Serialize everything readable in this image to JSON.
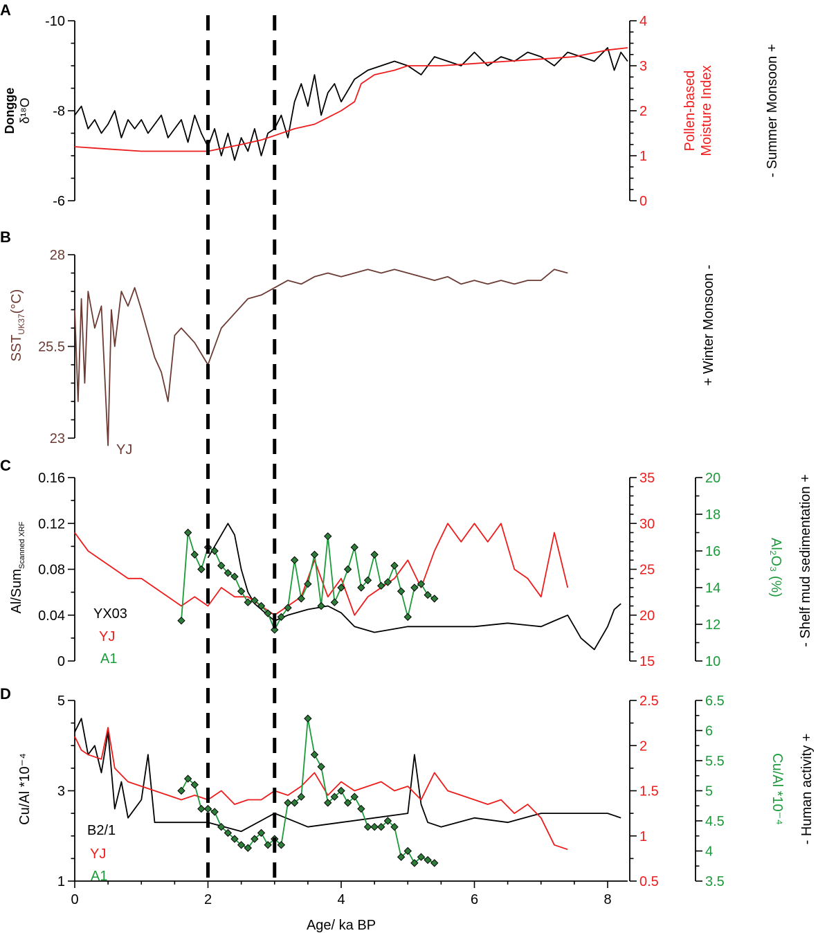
{
  "x_axis": {
    "label": "Age/ ka BP",
    "range": [
      0,
      8.3
    ],
    "ticks": [
      "0",
      "2",
      "4",
      "6",
      "8"
    ]
  },
  "dashed_lines_ka": [
    2,
    3
  ],
  "colors": {
    "black": "#000000",
    "red": "#ee1c1c",
    "green": "#1b9a3a",
    "brown": "#6b3b33",
    "marker_fill": "#2f7d3a"
  },
  "panels": {
    "A": {
      "letter": "A",
      "left_label_line1": "Dongge",
      "left_label_line2": "δ¹⁸O",
      "left_ticks": [
        "-10",
        "-8",
        "-6"
      ],
      "right_label_line1": "Pollen-based",
      "right_label_line2": "Moisture Index",
      "right_ticks": [
        "4",
        "3",
        "2",
        "1",
        "0"
      ],
      "side_label": "-  Summer Monsoon  +"
    },
    "B": {
      "letter": "B",
      "left_label": "SST",
      "left_label_sub": "UK37",
      "left_label_tail": "(°C)",
      "left_ticks": [
        "28",
        "25.5",
        "23"
      ],
      "series_label": "YJ",
      "side_label": "+  Winter Monsoon  -"
    },
    "C": {
      "letter": "C",
      "left_label": "Al/Sum",
      "left_label_sub": "Scanned XRF",
      "left_ticks": [
        "0.16",
        "0.12",
        "0.08",
        "0.04",
        "0"
      ],
      "right1_ticks": [
        "35",
        "30",
        "25",
        "20",
        "15"
      ],
      "right2_ticks": [
        "20",
        "18",
        "16",
        "14",
        "12",
        "10"
      ],
      "right2_label": "Al₂O₃ (%)",
      "legend": [
        "YX03",
        "YJ",
        "A1"
      ],
      "side_label": "-  Shelf mud sedimentation  +"
    },
    "D": {
      "letter": "D",
      "left_label": "Cu/Al *10⁻⁴",
      "left_ticks": [
        "5",
        "3",
        "1"
      ],
      "right1_ticks": [
        "2.5",
        "2",
        "1.5",
        "1",
        "0.5"
      ],
      "right2_ticks": [
        "6.5",
        "6",
        "5.5",
        "5",
        "4.5",
        "4",
        "3.5"
      ],
      "right2_label": "Cu/Al *10⁻⁴",
      "legend": [
        "B2/1",
        "YJ",
        "A1"
      ],
      "side_label": "-  Human activity  +"
    }
  },
  "chart_data": [
    {
      "panel": "A",
      "type": "line",
      "xlabel": "Age/ ka BP",
      "series": [
        {
          "name": "Dongge δ18O",
          "axis": "left",
          "ylim": [
            -10,
            -6
          ],
          "inverted": true,
          "x": [
            0,
            0.1,
            0.2,
            0.3,
            0.4,
            0.5,
            0.6,
            0.7,
            0.8,
            0.9,
            1.0,
            1.1,
            1.2,
            1.3,
            1.4,
            1.5,
            1.6,
            1.7,
            1.8,
            1.9,
            2.0,
            2.1,
            2.2,
            2.3,
            2.4,
            2.5,
            2.6,
            2.7,
            2.8,
            2.9,
            3.0,
            3.1,
            3.2,
            3.3,
            3.4,
            3.5,
            3.6,
            3.7,
            3.8,
            3.9,
            4.0,
            4.2,
            4.4,
            4.6,
            4.8,
            5.0,
            5.2,
            5.4,
            5.6,
            5.8,
            6.0,
            6.2,
            6.4,
            6.6,
            6.8,
            7.0,
            7.2,
            7.4,
            7.6,
            7.8,
            8.0,
            8.1,
            8.2,
            8.3
          ],
          "y": [
            -7.9,
            -8.1,
            -7.6,
            -7.8,
            -7.5,
            -7.7,
            -8.0,
            -7.4,
            -7.8,
            -7.6,
            -7.8,
            -7.5,
            -7.7,
            -7.9,
            -7.4,
            -7.6,
            -7.8,
            -7.3,
            -7.9,
            -7.5,
            -7.2,
            -7.6,
            -7.0,
            -7.5,
            -6.9,
            -7.4,
            -7.1,
            -7.6,
            -7.0,
            -7.5,
            -7.6,
            -7.9,
            -7.4,
            -8.2,
            -8.6,
            -8.1,
            -8.8,
            -7.9,
            -8.4,
            -8.6,
            -8.2,
            -8.7,
            -8.9,
            -9.0,
            -9.1,
            -9.0,
            -8.8,
            -9.2,
            -9.1,
            -9.0,
            -9.3,
            -9.0,
            -9.2,
            -9.1,
            -9.3,
            -9.2,
            -9.0,
            -9.3,
            -9.2,
            -9.1,
            -9.4,
            -8.9,
            -9.3,
            -9.1
          ]
        },
        {
          "name": "Pollen-based Moisture Index",
          "axis": "right",
          "ylim": [
            0,
            4
          ],
          "x": [
            0,
            0.5,
            1.0,
            1.5,
            2.0,
            2.5,
            2.8,
            3.0,
            3.3,
            3.6,
            3.8,
            4.0,
            4.2,
            4.3,
            4.5,
            4.8,
            5.0,
            5.5,
            6.0,
            6.5,
            7.0,
            7.5,
            8.0,
            8.3
          ],
          "y": [
            1.2,
            1.15,
            1.1,
            1.1,
            1.1,
            1.25,
            1.35,
            1.45,
            1.6,
            1.7,
            1.85,
            2.0,
            2.2,
            2.6,
            2.8,
            2.9,
            3.0,
            3.0,
            3.05,
            3.1,
            3.15,
            3.2,
            3.35,
            3.4
          ]
        }
      ]
    },
    {
      "panel": "B",
      "type": "line",
      "xlabel": "Age/ ka BP",
      "ylabel": "SST UK37 (°C)",
      "ylim": [
        23,
        28
      ],
      "series": [
        {
          "name": "YJ",
          "x": [
            0,
            0.05,
            0.1,
            0.15,
            0.2,
            0.3,
            0.4,
            0.5,
            0.55,
            0.6,
            0.7,
            0.8,
            0.9,
            1.0,
            1.2,
            1.3,
            1.4,
            1.5,
            1.6,
            1.8,
            2.0,
            2.2,
            2.4,
            2.6,
            2.8,
            3.0,
            3.2,
            3.4,
            3.6,
            3.8,
            4.0,
            4.2,
            4.4,
            4.6,
            4.8,
            5.0,
            5.2,
            5.4,
            5.6,
            5.8,
            6.0,
            6.2,
            6.4,
            6.6,
            6.8,
            7.0,
            7.2,
            7.4
          ],
          "y": [
            26.5,
            24.0,
            26.8,
            24.5,
            27.0,
            26.0,
            26.6,
            22.8,
            26.5,
            25.5,
            27.0,
            26.6,
            27.1,
            26.5,
            25.2,
            24.8,
            24.0,
            25.8,
            26.0,
            25.6,
            25.0,
            26.0,
            26.4,
            26.8,
            26.9,
            27.1,
            27.3,
            27.2,
            27.4,
            27.5,
            27.4,
            27.5,
            27.6,
            27.5,
            27.6,
            27.5,
            27.4,
            27.3,
            27.4,
            27.2,
            27.3,
            27.2,
            27.3,
            27.2,
            27.3,
            27.3,
            27.6,
            27.5
          ]
        }
      ]
    },
    {
      "panel": "C",
      "type": "line",
      "xlabel": "Age/ ka BP",
      "series": [
        {
          "name": "YX03",
          "axis": "left",
          "ylim": [
            0,
            0.16
          ],
          "x": [
            2.0,
            2.1,
            2.2,
            2.3,
            2.4,
            2.5,
            2.6,
            2.7,
            2.8,
            2.9,
            3.0,
            3.2,
            3.5,
            3.8,
            4.0,
            4.2,
            4.5,
            4.8,
            5.0,
            5.5,
            6.0,
            6.5,
            7.0,
            7.2,
            7.4,
            7.5,
            7.6,
            7.7,
            7.8,
            7.9,
            8.0,
            8.1,
            8.2
          ],
          "y": [
            0.09,
            0.1,
            0.11,
            0.12,
            0.11,
            0.08,
            0.06,
            0.05,
            0.045,
            0.04,
            0.035,
            0.04,
            0.045,
            0.048,
            0.042,
            0.03,
            0.025,
            0.028,
            0.03,
            0.03,
            0.03,
            0.033,
            0.03,
            0.035,
            0.04,
            0.03,
            0.02,
            0.015,
            0.01,
            0.02,
            0.03,
            0.045,
            0.05
          ]
        },
        {
          "name": "YJ",
          "axis": "right1",
          "ylim": [
            15,
            35
          ],
          "x": [
            0,
            0.1,
            0.2,
            0.4,
            0.6,
            0.8,
            1.0,
            1.2,
            1.4,
            1.6,
            1.8,
            2.0,
            2.2,
            2.4,
            2.6,
            2.8,
            3.0,
            3.2,
            3.4,
            3.6,
            3.8,
            4.0,
            4.2,
            4.4,
            4.6,
            4.8,
            5.0,
            5.2,
            5.4,
            5.6,
            5.8,
            6.0,
            6.2,
            6.4,
            6.6,
            6.8,
            7.0,
            7.2,
            7.4
          ],
          "y": [
            29,
            28,
            27,
            26,
            25,
            24,
            24,
            23,
            22,
            21,
            22,
            21,
            23,
            22,
            22,
            21,
            20,
            21,
            22,
            26,
            22,
            24,
            20,
            22,
            23,
            24,
            26,
            23,
            27,
            30,
            28,
            30,
            28,
            30,
            25,
            24,
            22,
            29,
            23
          ]
        },
        {
          "name": "A1",
          "axis": "right2",
          "ylim": [
            10,
            20
          ],
          "x": [
            1.6,
            1.7,
            1.8,
            1.9,
            2.0,
            2.1,
            2.2,
            2.3,
            2.4,
            2.5,
            2.6,
            2.7,
            2.8,
            2.9,
            3.0,
            3.1,
            3.2,
            3.3,
            3.4,
            3.5,
            3.6,
            3.7,
            3.8,
            3.9,
            4.0,
            4.1,
            4.2,
            4.3,
            4.4,
            4.5,
            4.6,
            4.7,
            4.8,
            4.9,
            5.0,
            5.1,
            5.2,
            5.3,
            5.4
          ],
          "y": [
            12.2,
            17.0,
            15.8,
            15.0,
            16.2,
            16.0,
            15.2,
            14.8,
            14.6,
            13.8,
            13.2,
            13.3,
            13.0,
            12.6,
            11.7,
            12.4,
            12.9,
            15.5,
            13.4,
            14.2,
            15.8,
            13.0,
            16.8,
            13.2,
            14.0,
            15.0,
            16.2,
            14.0,
            14.4,
            15.8,
            14.1,
            14.3,
            15.2,
            13.8,
            12.4,
            14.0,
            14.2,
            13.6,
            13.4
          ]
        }
      ]
    },
    {
      "panel": "D",
      "type": "line",
      "xlabel": "Age/ ka BP",
      "series": [
        {
          "name": "B2/1",
          "axis": "left",
          "ylim": [
            1,
            5
          ],
          "x": [
            0,
            0.1,
            0.2,
            0.3,
            0.4,
            0.5,
            0.6,
            0.7,
            0.8,
            1.0,
            1.1,
            1.2,
            1.5,
            2.0,
            2.5,
            3.0,
            3.5,
            4.0,
            4.5,
            5.0,
            5.1,
            5.2,
            5.3,
            5.5,
            6.0,
            6.5,
            7.0,
            7.5,
            8.0,
            8.2
          ],
          "y": [
            4.3,
            4.6,
            3.8,
            4.0,
            3.4,
            4.3,
            2.6,
            3.2,
            2.4,
            2.8,
            3.8,
            2.3,
            2.3,
            2.3,
            2.1,
            2.5,
            2.2,
            2.3,
            2.4,
            2.5,
            3.8,
            2.7,
            2.3,
            2.2,
            2.4,
            2.3,
            2.5,
            2.5,
            2.5,
            2.4
          ]
        },
        {
          "name": "YJ",
          "axis": "right1",
          "ylim": [
            0.5,
            2.5
          ],
          "x": [
            0,
            0.1,
            0.2,
            0.4,
            0.5,
            0.6,
            0.8,
            1.0,
            1.2,
            1.4,
            1.6,
            1.8,
            2.0,
            2.2,
            2.4,
            2.6,
            2.8,
            3.0,
            3.2,
            3.4,
            3.6,
            3.8,
            4.0,
            4.2,
            4.4,
            4.6,
            4.8,
            5.0,
            5.2,
            5.4,
            5.6,
            5.8,
            6.0,
            6.2,
            6.4,
            6.6,
            6.8,
            7.0,
            7.2,
            7.4
          ],
          "y": [
            2.1,
            1.95,
            1.9,
            1.85,
            2.2,
            1.75,
            1.6,
            1.55,
            1.5,
            1.45,
            1.4,
            1.45,
            1.4,
            1.5,
            1.35,
            1.4,
            1.4,
            1.5,
            1.45,
            1.55,
            1.7,
            1.45,
            1.6,
            1.5,
            1.55,
            1.6,
            1.5,
            1.55,
            1.4,
            1.7,
            1.5,
            1.45,
            1.4,
            1.35,
            1.4,
            1.25,
            1.35,
            1.2,
            0.9,
            0.85
          ]
        },
        {
          "name": "A1",
          "axis": "right2",
          "ylim": [
            3.5,
            6.5
          ],
          "x": [
            1.6,
            1.7,
            1.8,
            1.9,
            2.0,
            2.1,
            2.2,
            2.3,
            2.4,
            2.5,
            2.6,
            2.7,
            2.8,
            2.9,
            3.0,
            3.1,
            3.2,
            3.3,
            3.4,
            3.5,
            3.6,
            3.7,
            3.8,
            3.9,
            4.0,
            4.1,
            4.2,
            4.3,
            4.4,
            4.5,
            4.6,
            4.7,
            4.8,
            4.9,
            5.0,
            5.1,
            5.2,
            5.3,
            5.4
          ],
          "y": [
            5.0,
            5.2,
            5.1,
            4.7,
            4.7,
            4.65,
            4.4,
            4.3,
            4.2,
            4.1,
            4.05,
            4.2,
            4.3,
            4.1,
            4.2,
            4.1,
            4.8,
            4.8,
            4.9,
            6.2,
            5.6,
            5.4,
            4.8,
            4.9,
            5.0,
            4.8,
            4.9,
            4.7,
            4.4,
            4.4,
            4.4,
            4.5,
            4.4,
            3.9,
            4.0,
            3.8,
            3.9,
            3.85,
            3.8
          ]
        }
      ]
    }
  ]
}
